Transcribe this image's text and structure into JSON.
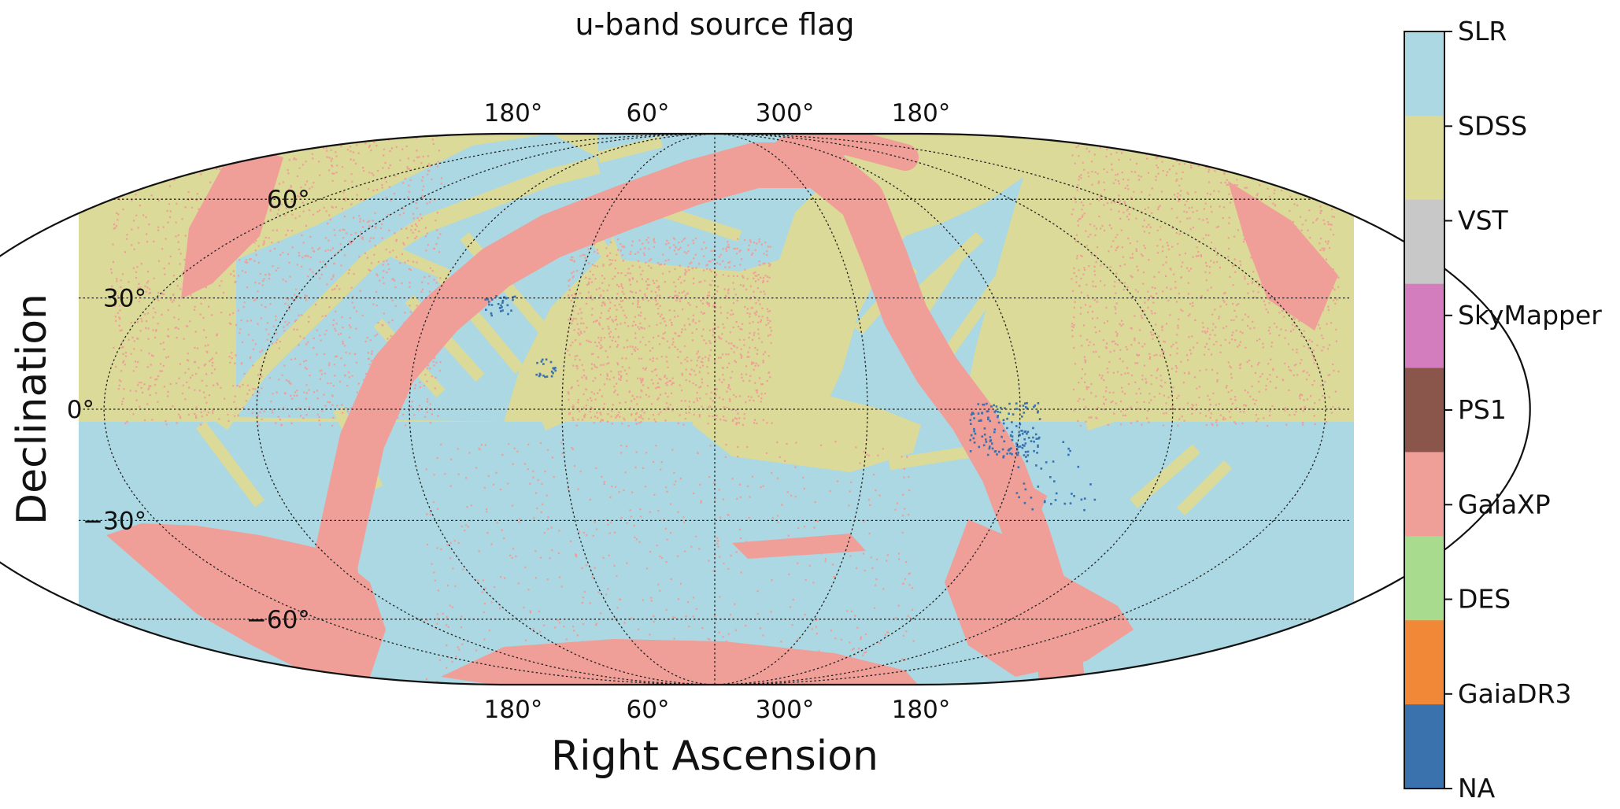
{
  "chart_data": {
    "type": "heatmap",
    "projection": "Mollweide (all-sky map)",
    "title": "u-band source flag",
    "xlabel": "Right Ascension",
    "ylabel": "Declination",
    "ra_tick_labels": [
      "180°",
      "60°",
      "300°",
      "180°"
    ],
    "dec_tick_labels": [
      "60°",
      "30°",
      "0°",
      "−30°",
      "−60°"
    ],
    "dec_tick_values": [
      60,
      30,
      0,
      -30,
      -60
    ],
    "grid": true,
    "colorbar": {
      "placement": "right",
      "categories": [
        {
          "label": "SLR",
          "color": "#ABD8E3"
        },
        {
          "label": "SDSS",
          "color": "#DBDA98"
        },
        {
          "label": "VST",
          "color": "#C8C8C8"
        },
        {
          "label": "SkyMapper",
          "color": "#D47DBE"
        },
        {
          "label": "PS1",
          "color": "#8A564C"
        },
        {
          "label": "GaiaXP",
          "color": "#F09E98"
        },
        {
          "label": "DES",
          "color": "#A9DB8F"
        },
        {
          "label": "GaiaDR3",
          "color": "#F08838"
        },
        {
          "label": "NA",
          "color": "#3A72AE"
        }
      ]
    }
  }
}
